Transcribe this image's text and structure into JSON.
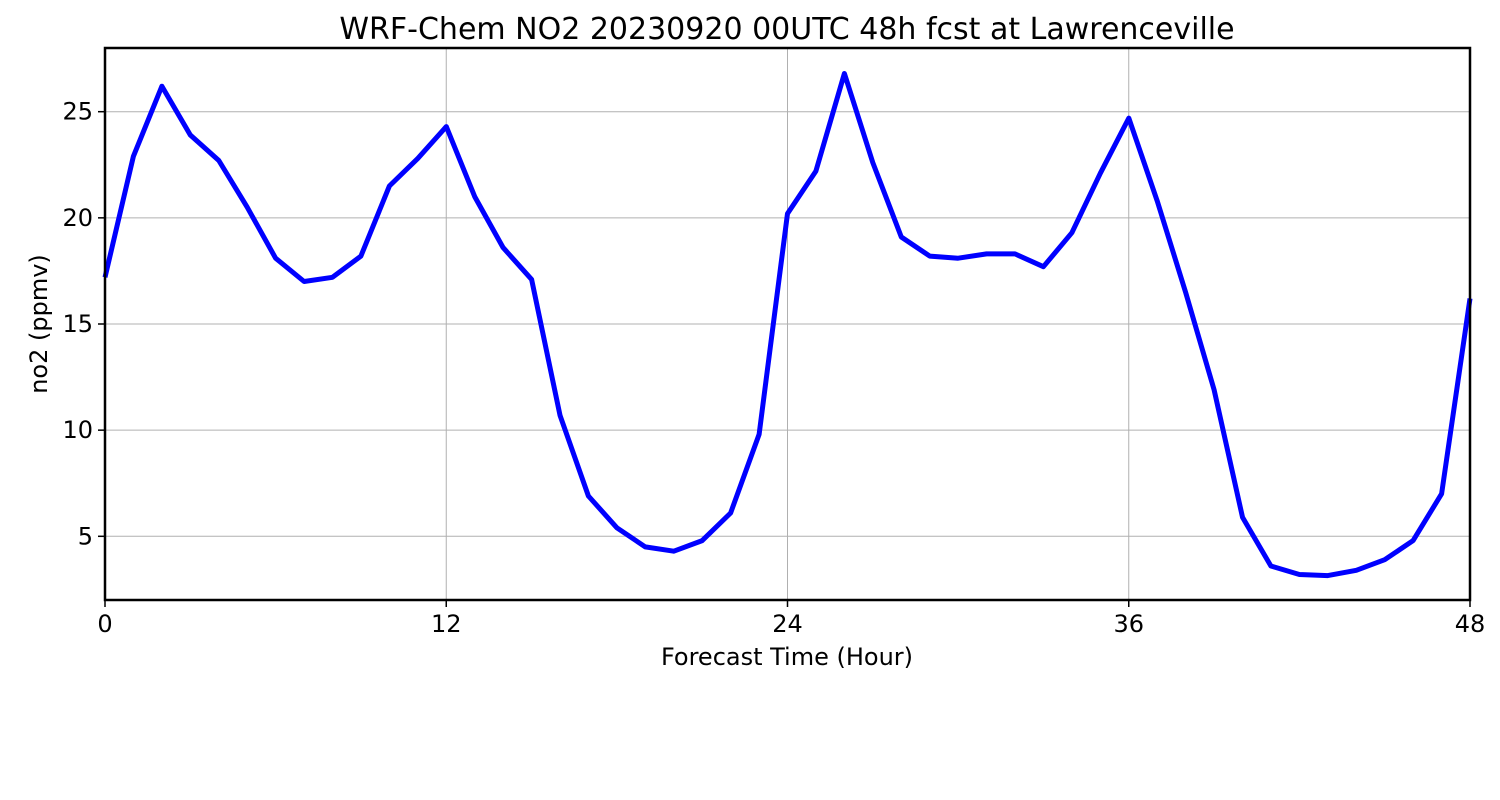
{
  "chart_data": {
    "type": "line",
    "title": "WRF-Chem NO2  20230920 00UTC 48h fcst at Lawrenceville",
    "xlabel": "Forecast Time (Hour)",
    "ylabel": "no2  (ppmv)",
    "xlim": [
      0,
      48
    ],
    "ylim": [
      2,
      28
    ],
    "xticks": [
      0,
      12,
      24,
      36,
      48
    ],
    "xtick_labels": [
      "0",
      "12",
      "24",
      "36",
      "48"
    ],
    "yticks": [
      5,
      10,
      15,
      20,
      25
    ],
    "ytick_labels": [
      "5",
      "10",
      "15",
      "20",
      "25"
    ],
    "grid": true,
    "series": [
      {
        "color": "#0000ff",
        "x": [
          0,
          1,
          2,
          3,
          4,
          5,
          6,
          7,
          8,
          9,
          10,
          11,
          12,
          13,
          14,
          15,
          16,
          17,
          18,
          19,
          20,
          21,
          22,
          23,
          24,
          25,
          26,
          27,
          28,
          29,
          30,
          31,
          32,
          33,
          34,
          35,
          36,
          37,
          38,
          39,
          40,
          41,
          42,
          43,
          44,
          45,
          46,
          47,
          48
        ],
        "values": [
          17.2,
          22.9,
          26.2,
          23.9,
          22.7,
          20.5,
          18.1,
          17.0,
          17.2,
          18.2,
          21.5,
          22.8,
          24.3,
          21.0,
          18.6,
          17.1,
          10.7,
          6.9,
          5.4,
          4.5,
          4.3,
          4.8,
          6.1,
          9.8,
          20.2,
          22.2,
          26.8,
          22.6,
          19.1,
          18.2,
          18.1,
          18.3,
          18.3,
          17.7,
          19.3,
          22.1,
          24.7,
          20.8,
          16.5,
          11.9,
          5.9,
          3.6,
          3.2,
          3.15,
          3.4,
          3.9,
          4.8,
          7.0,
          16.2
        ]
      }
    ],
    "colors": {
      "line": "#0000ff",
      "grid": "#b0b0b0",
      "frame": "#000000"
    }
  }
}
